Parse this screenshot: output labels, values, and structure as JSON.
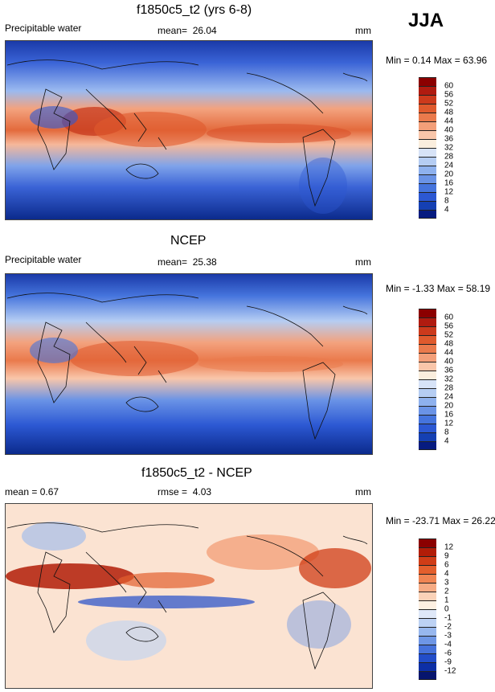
{
  "season": "JJA",
  "units": "mm",
  "panels": [
    {
      "title": "f1850c5_t2 (yrs 6-8)",
      "left_label": "Precipitable water",
      "mean_label": "mean=",
      "mean_value": "26.04",
      "units": "mm",
      "minmax": "Min =  0.14 Max =  63.96",
      "colorbar_levels": [
        "60",
        "56",
        "52",
        "48",
        "44",
        "40",
        "36",
        "32",
        "28",
        "24",
        "20",
        "16",
        "12",
        "8",
        "4"
      ],
      "colors": [
        "#8b0000",
        "#b01b10",
        "#cc3a1c",
        "#df5a2d",
        "#ea7a4c",
        "#f39f79",
        "#f9c6aa",
        "#faeede",
        "#d7e3f7",
        "#b5cdf3",
        "#8eb1ee",
        "#6a93e6",
        "#4574dd",
        "#2c58d3",
        "#1540b3",
        "#061b80"
      ]
    },
    {
      "title": "NCEP",
      "left_label": "Precipitable water",
      "mean_label": "mean=",
      "mean_value": "25.38",
      "units": "mm",
      "minmax": "Min = -1.33 Max =  58.19",
      "colorbar_levels": [
        "60",
        "56",
        "52",
        "48",
        "44",
        "40",
        "36",
        "32",
        "28",
        "24",
        "20",
        "16",
        "12",
        "8",
        "4"
      ],
      "colors": [
        "#8b0000",
        "#b01b10",
        "#cc3a1c",
        "#df5a2d",
        "#ea7a4c",
        "#f39f79",
        "#f9c6aa",
        "#faeede",
        "#d7e3f7",
        "#b5cdf3",
        "#8eb1ee",
        "#6a93e6",
        "#4574dd",
        "#2c58d3",
        "#1540b3",
        "#061b80"
      ]
    },
    {
      "title": "f1850c5_t2 - NCEP",
      "left_label": "mean =   0.67",
      "mean_label": "rmse =",
      "mean_value": "4.03",
      "units": "mm",
      "minmax": "Min = -23.71 Max =  26.22",
      "colorbar_levels": [
        "12",
        "9",
        "6",
        "4",
        "3",
        "2",
        "1",
        "0",
        "-1",
        "-2",
        "-3",
        "-4",
        "-6",
        "-9",
        "-12"
      ],
      "colors": [
        "#8b0000",
        "#b21d08",
        "#d03d17",
        "#e35f2d",
        "#f08553",
        "#f6ab84",
        "#fad2b8",
        "#fdf0e2",
        "#dfe8f8",
        "#bdd2f4",
        "#97b7ee",
        "#6e96e5",
        "#4672db",
        "#224dc9",
        "#0d2fa6",
        "#06156e"
      ]
    }
  ],
  "chart_data": {
    "type": "heatmap",
    "variable": "Precipitable water",
    "season": "JJA",
    "units": "mm",
    "maps": [
      {
        "name": "f1850c5_t2 (yrs 6-8)",
        "mean": 26.04,
        "min": 0.14,
        "max": 63.96
      },
      {
        "name": "NCEP",
        "mean": 25.38,
        "min": -1.33,
        "max": 58.19
      },
      {
        "name": "f1850c5_t2 - NCEP",
        "mean": 0.67,
        "rmse": 4.03,
        "min": -23.71,
        "max": 26.22
      }
    ]
  }
}
